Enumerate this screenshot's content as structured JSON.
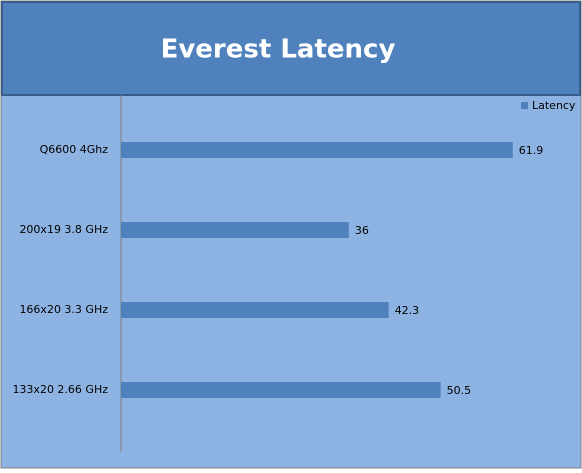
{
  "chart_data": {
    "type": "bar",
    "orientation": "horizontal",
    "title": "Everest Latency",
    "categories": [
      "Q6600 4Ghz",
      "200x19 3.8 GHz",
      "166x20 3.3 GHz",
      "133x20 2.66 GHz"
    ],
    "series": [
      {
        "name": "Latency",
        "color": "#4f81bd",
        "values": [
          61.9,
          36,
          42.3,
          50.5
        ]
      }
    ],
    "xlim": [
      0,
      70
    ],
    "legend": "top-right"
  }
}
